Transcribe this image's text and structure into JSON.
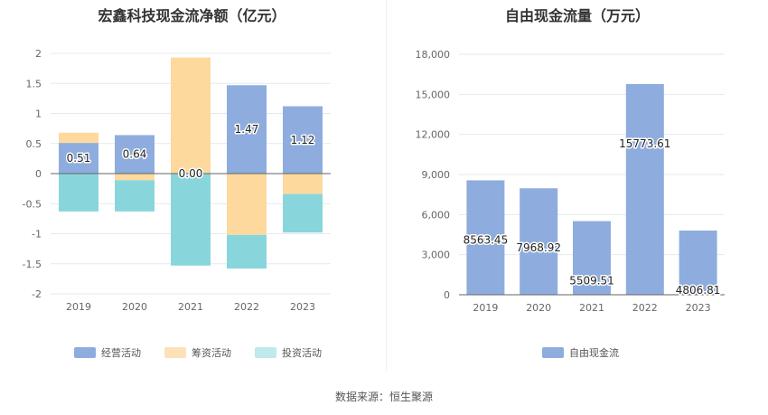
{
  "chart_data": [
    {
      "type": "bar",
      "stacked": true,
      "title": "宏鑫科技现金流净额（亿元）",
      "categories": [
        "2019",
        "2020",
        "2021",
        "2022",
        "2023"
      ],
      "ylim": [
        -2,
        2
      ],
      "yticks": [
        2,
        1.5,
        1,
        0.5,
        0,
        -0.5,
        -1,
        -1.5,
        -2
      ],
      "ytick_labels": [
        "2",
        "1.5",
        "1",
        "0.5",
        "0",
        "-0.5",
        "-1",
        "-1.5",
        "-2"
      ],
      "series": [
        {
          "name": "经营活动",
          "color": "#8eadde",
          "values": [
            0.51,
            0.64,
            0.0,
            1.47,
            1.12
          ]
        },
        {
          "name": "筹资活动",
          "color": "#fdd99d",
          "values": [
            0.17,
            -0.11,
            1.93,
            -1.02,
            -0.34
          ]
        },
        {
          "name": "投资活动",
          "color": "#88d6dc",
          "values": [
            -0.63,
            -0.52,
            -1.53,
            -0.56,
            -0.64
          ]
        }
      ],
      "data_labels": [
        "0.51",
        "0.64",
        "0.00",
        "1.47",
        "1.12"
      ],
      "legend_colors": [
        "#8eadde",
        "#fde2b8",
        "#c0e9ec"
      ],
      "legend_position": "bottom"
    },
    {
      "type": "bar",
      "title": "自由现金流量（万元）",
      "categories": [
        "2019",
        "2020",
        "2021",
        "2022",
        "2023"
      ],
      "ylim": [
        0,
        18000
      ],
      "yticks": [
        0,
        3000,
        6000,
        9000,
        12000,
        15000,
        18000
      ],
      "ytick_labels": [
        "0",
        "3,000",
        "6,000",
        "9,000",
        "12,000",
        "15,000",
        "18,000"
      ],
      "series": [
        {
          "name": "自由现金流",
          "color": "#8eadde",
          "values": [
            8563.45,
            7968.92,
            5509.51,
            15773.61,
            4806.81
          ]
        }
      ],
      "data_labels": [
        "8563.45",
        "7968.92",
        "5509.51",
        "15773.61",
        "4806.81"
      ],
      "legend_position": "bottom"
    }
  ],
  "footer": {
    "source": "数据来源：恒生聚源"
  }
}
